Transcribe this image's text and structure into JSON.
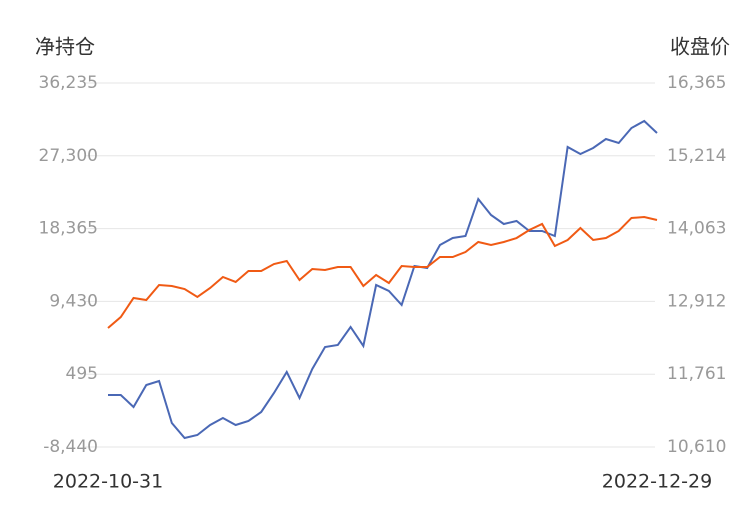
{
  "chart_data": {
    "type": "line",
    "y_title": "净持仓",
    "y2_title": "收盘价",
    "categories": [
      "2022-10-31",
      null,
      null,
      null,
      null,
      null,
      null,
      null,
      null,
      null,
      null,
      null,
      null,
      null,
      null,
      null,
      null,
      null,
      null,
      null,
      null,
      null,
      null,
      null,
      null,
      null,
      null,
      null,
      null,
      null,
      null,
      null,
      null,
      null,
      null,
      null,
      null,
      null,
      null,
      null,
      null,
      null,
      null,
      "2022-12-29"
    ],
    "series": [
      {
        "color": "#4a68b5",
        "axis": "y",
        "values": [
          -2057,
          -2057,
          -3530,
          -829,
          -339,
          -5493,
          -7334,
          -6966,
          -5739,
          -4880,
          -5739,
          -5248,
          -4143,
          -1811,
          766,
          -2425,
          1134,
          3834,
          4080,
          6289,
          3957,
          11444,
          10707,
          8989,
          13775,
          13530,
          16353,
          17212,
          17457,
          21998,
          20035,
          18930,
          19298,
          18071,
          18071,
          17457,
          28380,
          27521,
          28258,
          29362,
          28871,
          30712,
          31571,
          30098
        ]
      },
      {
        "color": "#f05a14",
        "axis": "y2",
        "values": [
          12492,
          12665,
          12966,
          12934,
          13171,
          13156,
          13108,
          12982,
          13124,
          13298,
          13219,
          13393,
          13393,
          13503,
          13551,
          13250,
          13424,
          13409,
          13456,
          13456,
          13156,
          13329,
          13203,
          13472,
          13456,
          13456,
          13614,
          13614,
          13693,
          13851,
          13804,
          13851,
          13914,
          14041,
          14136,
          13788,
          13883,
          14073,
          13883,
          13914,
          14025,
          14231,
          14246,
          14199
        ]
      }
    ],
    "ylim": [
      -8440,
      36235
    ],
    "yticks": [
      {
        "value": -8440,
        "label": "-8,440"
      },
      495,
      {
        "value": 9430,
        "label": "9,430"
      },
      {
        "value": 18365,
        "label": "18,365"
      },
      {
        "value": 27300,
        "label": "27,300"
      },
      {
        "value": 36235,
        "label": "36,235"
      }
    ],
    "y2lim": [
      10610,
      16365
    ],
    "y2ticks": [
      {
        "value": 10610,
        "label": "10,610"
      },
      {
        "value": 11761,
        "label": "11,761"
      },
      {
        "value": 12912,
        "label": "12,912"
      },
      {
        "value": 14063,
        "label": "14,063"
      },
      {
        "value": 15214,
        "label": "15,214"
      },
      {
        "value": 16365,
        "label": "16,365"
      }
    ],
    "grid": true
  }
}
